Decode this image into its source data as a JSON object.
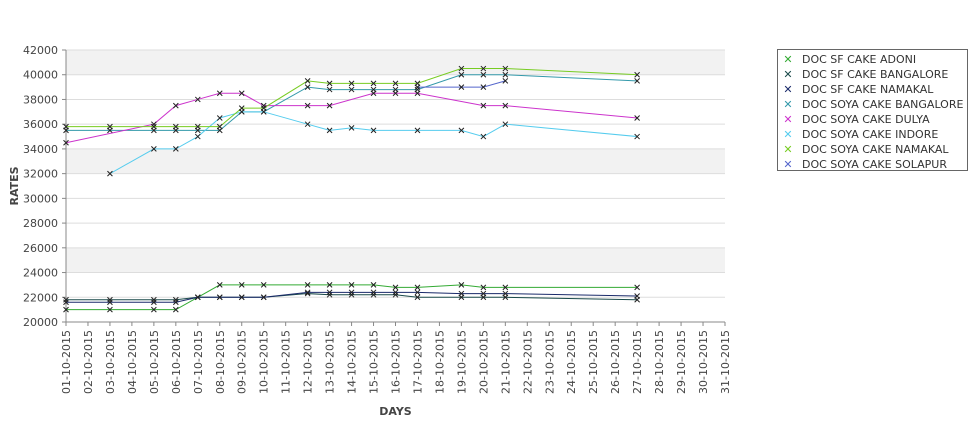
{
  "chart_data": {
    "type": "line",
    "title": "",
    "xlabel": "DAYS",
    "ylabel": "RATES",
    "ylim": [
      20000,
      42000
    ],
    "y_ticks": [
      20000,
      22000,
      24000,
      26000,
      28000,
      30000,
      32000,
      34000,
      36000,
      38000,
      40000,
      42000
    ],
    "categories": [
      "01-10-2015",
      "02-10-2015",
      "03-10-2015",
      "04-10-2015",
      "05-10-2015",
      "06-10-2015",
      "07-10-2015",
      "08-10-2015",
      "09-10-2015",
      "10-10-2015",
      "11-10-2015",
      "12-10-2015",
      "13-10-2015",
      "14-10-2015",
      "15-10-2015",
      "16-10-2015",
      "17-10-2015",
      "18-10-2015",
      "19-10-2015",
      "20-10-2015",
      "21-10-2015",
      "22-10-2015",
      "23-10-2015",
      "24-10-2015",
      "25-10-2015",
      "26-10-2015",
      "27-10-2015",
      "28-10-2015",
      "29-10-2015",
      "30-10-2015",
      "31-10-2015"
    ],
    "grid": true,
    "legend_position": "right",
    "series": [
      {
        "name": "DOC SF CAKE ADONI",
        "color": "#33aa33",
        "points": [
          [
            1,
            21000
          ],
          [
            3,
            21000
          ],
          [
            5,
            21000
          ],
          [
            6,
            21000
          ],
          [
            7,
            22000
          ],
          [
            8,
            23000
          ],
          [
            9,
            23000
          ],
          [
            10,
            23000
          ],
          [
            12,
            23000
          ],
          [
            13,
            23000
          ],
          [
            14,
            23000
          ],
          [
            15,
            23000
          ],
          [
            16,
            22800
          ],
          [
            17,
            22800
          ],
          [
            19,
            23000
          ],
          [
            20,
            22800
          ],
          [
            21,
            22800
          ],
          [
            27,
            22800
          ]
        ]
      },
      {
        "name": "DOC SF CAKE BANGALORE",
        "color": "#1a4a4a",
        "points": [
          [
            1,
            21800
          ],
          [
            3,
            21800
          ],
          [
            5,
            21800
          ],
          [
            6,
            21800
          ],
          [
            7,
            22000
          ],
          [
            8,
            22000
          ],
          [
            9,
            22000
          ],
          [
            10,
            22000
          ],
          [
            12,
            22300
          ],
          [
            13,
            22200
          ],
          [
            14,
            22200
          ],
          [
            15,
            22200
          ],
          [
            16,
            22200
          ],
          [
            17,
            22000
          ],
          [
            19,
            22000
          ],
          [
            20,
            22000
          ],
          [
            21,
            22000
          ],
          [
            27,
            21800
          ]
        ]
      },
      {
        "name": "DOC SF CAKE NAMAKAL",
        "color": "#1a2a6a",
        "points": [
          [
            1,
            21600
          ],
          [
            3,
            21600
          ],
          [
            5,
            21600
          ],
          [
            6,
            21600
          ],
          [
            7,
            22000
          ],
          [
            8,
            22000
          ],
          [
            9,
            22000
          ],
          [
            10,
            22000
          ],
          [
            12,
            22400
          ],
          [
            13,
            22400
          ],
          [
            14,
            22400
          ],
          [
            15,
            22400
          ],
          [
            16,
            22400
          ],
          [
            17,
            22400
          ],
          [
            19,
            22300
          ],
          [
            20,
            22300
          ],
          [
            21,
            22300
          ],
          [
            27,
            22100
          ]
        ]
      },
      {
        "name": "DOC SOYA CAKE BANGALORE",
        "color": "#3399aa",
        "points": [
          [
            1,
            35500
          ],
          [
            3,
            35500
          ],
          [
            5,
            35500
          ],
          [
            6,
            35500
          ],
          [
            7,
            35500
          ],
          [
            8,
            35500
          ],
          [
            9,
            37000
          ],
          [
            10,
            37000
          ],
          [
            12,
            39000
          ],
          [
            13,
            38800
          ],
          [
            14,
            38800
          ],
          [
            15,
            38800
          ],
          [
            16,
            38800
          ],
          [
            17,
            38800
          ],
          [
            19,
            40000
          ],
          [
            20,
            40000
          ],
          [
            21,
            40000
          ],
          [
            27,
            39500
          ]
        ]
      },
      {
        "name": "DOC SOYA CAKE DULYA",
        "color": "#cc33cc",
        "points": [
          [
            1,
            34500
          ],
          [
            5,
            36000
          ],
          [
            6,
            37500
          ],
          [
            7,
            38000
          ],
          [
            8,
            38500
          ],
          [
            9,
            38500
          ],
          [
            10,
            37500
          ],
          [
            12,
            37500
          ],
          [
            13,
            37500
          ],
          [
            15,
            38500
          ],
          [
            16,
            38500
          ],
          [
            17,
            38500
          ],
          [
            20,
            37500
          ],
          [
            21,
            37500
          ],
          [
            27,
            36500
          ]
        ]
      },
      {
        "name": "DOC SOYA CAKE INDORE",
        "color": "#55ccee",
        "points": [
          [
            3,
            32000
          ],
          [
            5,
            34000
          ],
          [
            6,
            34000
          ],
          [
            7,
            35000
          ],
          [
            8,
            36500
          ],
          [
            9,
            37000
          ],
          [
            10,
            37000
          ],
          [
            12,
            36000
          ],
          [
            13,
            35500
          ],
          [
            14,
            35700
          ],
          [
            15,
            35500
          ],
          [
            17,
            35500
          ],
          [
            19,
            35500
          ],
          [
            20,
            35000
          ],
          [
            21,
            36000
          ],
          [
            27,
            35000
          ]
        ]
      },
      {
        "name": "DOC SOYA CAKE NAMAKAL",
        "color": "#77cc22",
        "points": [
          [
            1,
            35800
          ],
          [
            3,
            35800
          ],
          [
            5,
            35800
          ],
          [
            6,
            35800
          ],
          [
            7,
            35800
          ],
          [
            8,
            35800
          ],
          [
            9,
            37300
          ],
          [
            10,
            37300
          ],
          [
            12,
            39500
          ],
          [
            13,
            39300
          ],
          [
            14,
            39300
          ],
          [
            15,
            39300
          ],
          [
            16,
            39300
          ],
          [
            17,
            39300
          ],
          [
            19,
            40500
          ],
          [
            20,
            40500
          ],
          [
            21,
            40500
          ],
          [
            27,
            40000
          ]
        ]
      },
      {
        "name": "DOC SOYA CAKE SOLAPUR",
        "color": "#5566cc",
        "points": [
          [
            17,
            39000
          ],
          [
            19,
            39000
          ],
          [
            20,
            39000
          ],
          [
            21,
            39500
          ]
        ]
      }
    ]
  }
}
